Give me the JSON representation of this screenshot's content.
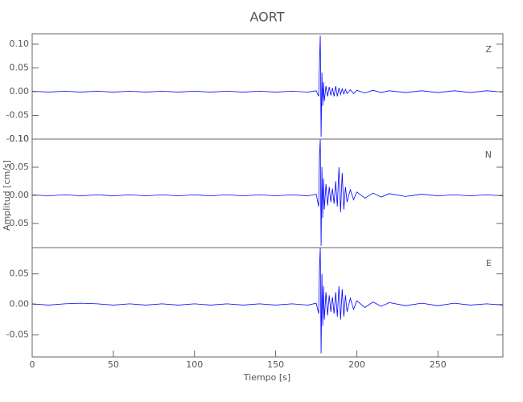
{
  "chart_data": [
    {
      "type": "line",
      "title": "AORT",
      "annotation": "Z",
      "xlim": [
        0,
        290
      ],
      "ylim": [
        -0.1,
        0.122
      ],
      "yticks": [
        {
          "value": -0.1,
          "label": "-0.10"
        },
        {
          "value": -0.05,
          "label": "-0.05"
        },
        {
          "value": 0,
          "label": "0.00"
        },
        {
          "value": 0.05,
          "label": "0.05"
        },
        {
          "value": 0.1,
          "label": "0.10"
        }
      ],
      "x": [
        0,
        10,
        20,
        30,
        40,
        50,
        60,
        70,
        80,
        90,
        100,
        110,
        120,
        130,
        140,
        150,
        160,
        170,
        175,
        176.5,
        177,
        177.5,
        178,
        178.5,
        179,
        179.5,
        180,
        181,
        182,
        183,
        184,
        185,
        186,
        187,
        188,
        189,
        190,
        191,
        192,
        193,
        194,
        196,
        198,
        200,
        205,
        210,
        215,
        220,
        230,
        240,
        250,
        260,
        270,
        280,
        290
      ],
      "series": [
        {
          "color": "#0000ff",
          "values": [
            0.001,
            -0.001,
            0.001,
            -0.001,
            0.001,
            -0.001,
            0.001,
            -0.001,
            0.001,
            -0.001,
            0.001,
            -0.001,
            0.001,
            -0.001,
            0.001,
            -0.001,
            0.001,
            -0.001,
            0.002,
            -0.01,
            0.06,
            0.118,
            -0.095,
            0.04,
            -0.03,
            0.02,
            -0.02,
            0.012,
            -0.01,
            0.01,
            -0.008,
            0.008,
            -0.01,
            0.012,
            -0.01,
            0.008,
            -0.006,
            0.006,
            -0.005,
            0.005,
            -0.004,
            0.004,
            -0.004,
            0.003,
            -0.003,
            0.003,
            -0.002,
            0.002,
            -0.002,
            0.002,
            -0.002,
            0.002,
            -0.002,
            0.002,
            -0.001
          ]
        }
      ]
    },
    {
      "type": "line",
      "annotation": "N",
      "ylabel": "Amplitud [cm/s]",
      "xlim": [
        0,
        290
      ],
      "ylim": [
        -0.093,
        0.1
      ],
      "yticks": [
        {
          "value": -0.05,
          "label": "-0.05"
        },
        {
          "value": 0,
          "label": "0.00"
        },
        {
          "value": 0.05,
          "label": "0.05"
        },
        {
          "value": 0.1,
          "label": "0.10"
        }
      ],
      "x": [
        0,
        10,
        20,
        30,
        40,
        50,
        60,
        70,
        80,
        90,
        100,
        110,
        120,
        130,
        140,
        150,
        160,
        170,
        175,
        176.5,
        177,
        177.5,
        178,
        178.5,
        179,
        179.5,
        180,
        181,
        182,
        183,
        184,
        185,
        186,
        187,
        188,
        189,
        190,
        191,
        192,
        193,
        194,
        196,
        198,
        200,
        205,
        210,
        215,
        220,
        230,
        240,
        250,
        260,
        270,
        280,
        290
      ],
      "series": [
        {
          "color": "#0000ff",
          "values": [
            0.001,
            -0.001,
            0.001,
            -0.001,
            0.001,
            -0.001,
            0.001,
            -0.001,
            0.001,
            -0.001,
            0.001,
            -0.001,
            0.001,
            -0.001,
            0.001,
            -0.001,
            0.001,
            -0.001,
            0.002,
            -0.02,
            0.07,
            0.1,
            -0.09,
            0.05,
            -0.04,
            0.03,
            -0.025,
            0.02,
            -0.018,
            0.015,
            -0.012,
            0.012,
            -0.015,
            0.025,
            -0.02,
            0.05,
            -0.03,
            0.04,
            -0.025,
            0.015,
            -0.012,
            0.01,
            -0.008,
            0.006,
            -0.005,
            0.004,
            -0.003,
            0.003,
            -0.002,
            0.002,
            -0.001,
            0.001,
            -0.001,
            0.001,
            -0.001
          ]
        }
      ]
    },
    {
      "type": "line",
      "annotation": "E",
      "xlabel": "Tiempo [s]",
      "xlim": [
        0,
        290
      ],
      "ylim": [
        -0.086,
        0.093
      ],
      "xticks": [
        0,
        50,
        100,
        150,
        200,
        250
      ],
      "yticks": [
        {
          "value": -0.05,
          "label": "-0.05"
        },
        {
          "value": 0,
          "label": "0.00"
        },
        {
          "value": 0.05,
          "label": "0.05"
        }
      ],
      "x": [
        0,
        10,
        20,
        30,
        40,
        50,
        60,
        70,
        80,
        90,
        100,
        110,
        120,
        130,
        140,
        150,
        160,
        170,
        175,
        176.5,
        177,
        177.5,
        178,
        178.5,
        179,
        179.5,
        180,
        181,
        182,
        183,
        184,
        185,
        186,
        187,
        188,
        189,
        190,
        191,
        192,
        193,
        194,
        196,
        198,
        200,
        205,
        210,
        215,
        220,
        230,
        240,
        250,
        260,
        270,
        280,
        290
      ],
      "series": [
        {
          "color": "#0000ff",
          "values": [
            0.001,
            -0.001,
            0.001,
            0.002,
            0.001,
            -0.001,
            0.001,
            -0.001,
            0.001,
            -0.001,
            0.001,
            -0.001,
            0.001,
            -0.001,
            0.001,
            -0.001,
            0.001,
            -0.001,
            0.002,
            -0.015,
            0.06,
            0.093,
            -0.08,
            0.05,
            -0.035,
            0.03,
            -0.025,
            0.02,
            -0.018,
            0.015,
            -0.012,
            0.012,
            -0.015,
            0.02,
            -0.02,
            0.03,
            -0.025,
            0.025,
            -0.02,
            0.015,
            -0.012,
            0.01,
            -0.008,
            0.006,
            -0.005,
            0.004,
            -0.003,
            0.003,
            -0.002,
            0.002,
            -0.002,
            0.002,
            -0.001,
            0.001,
            -0.001
          ]
        }
      ]
    }
  ]
}
